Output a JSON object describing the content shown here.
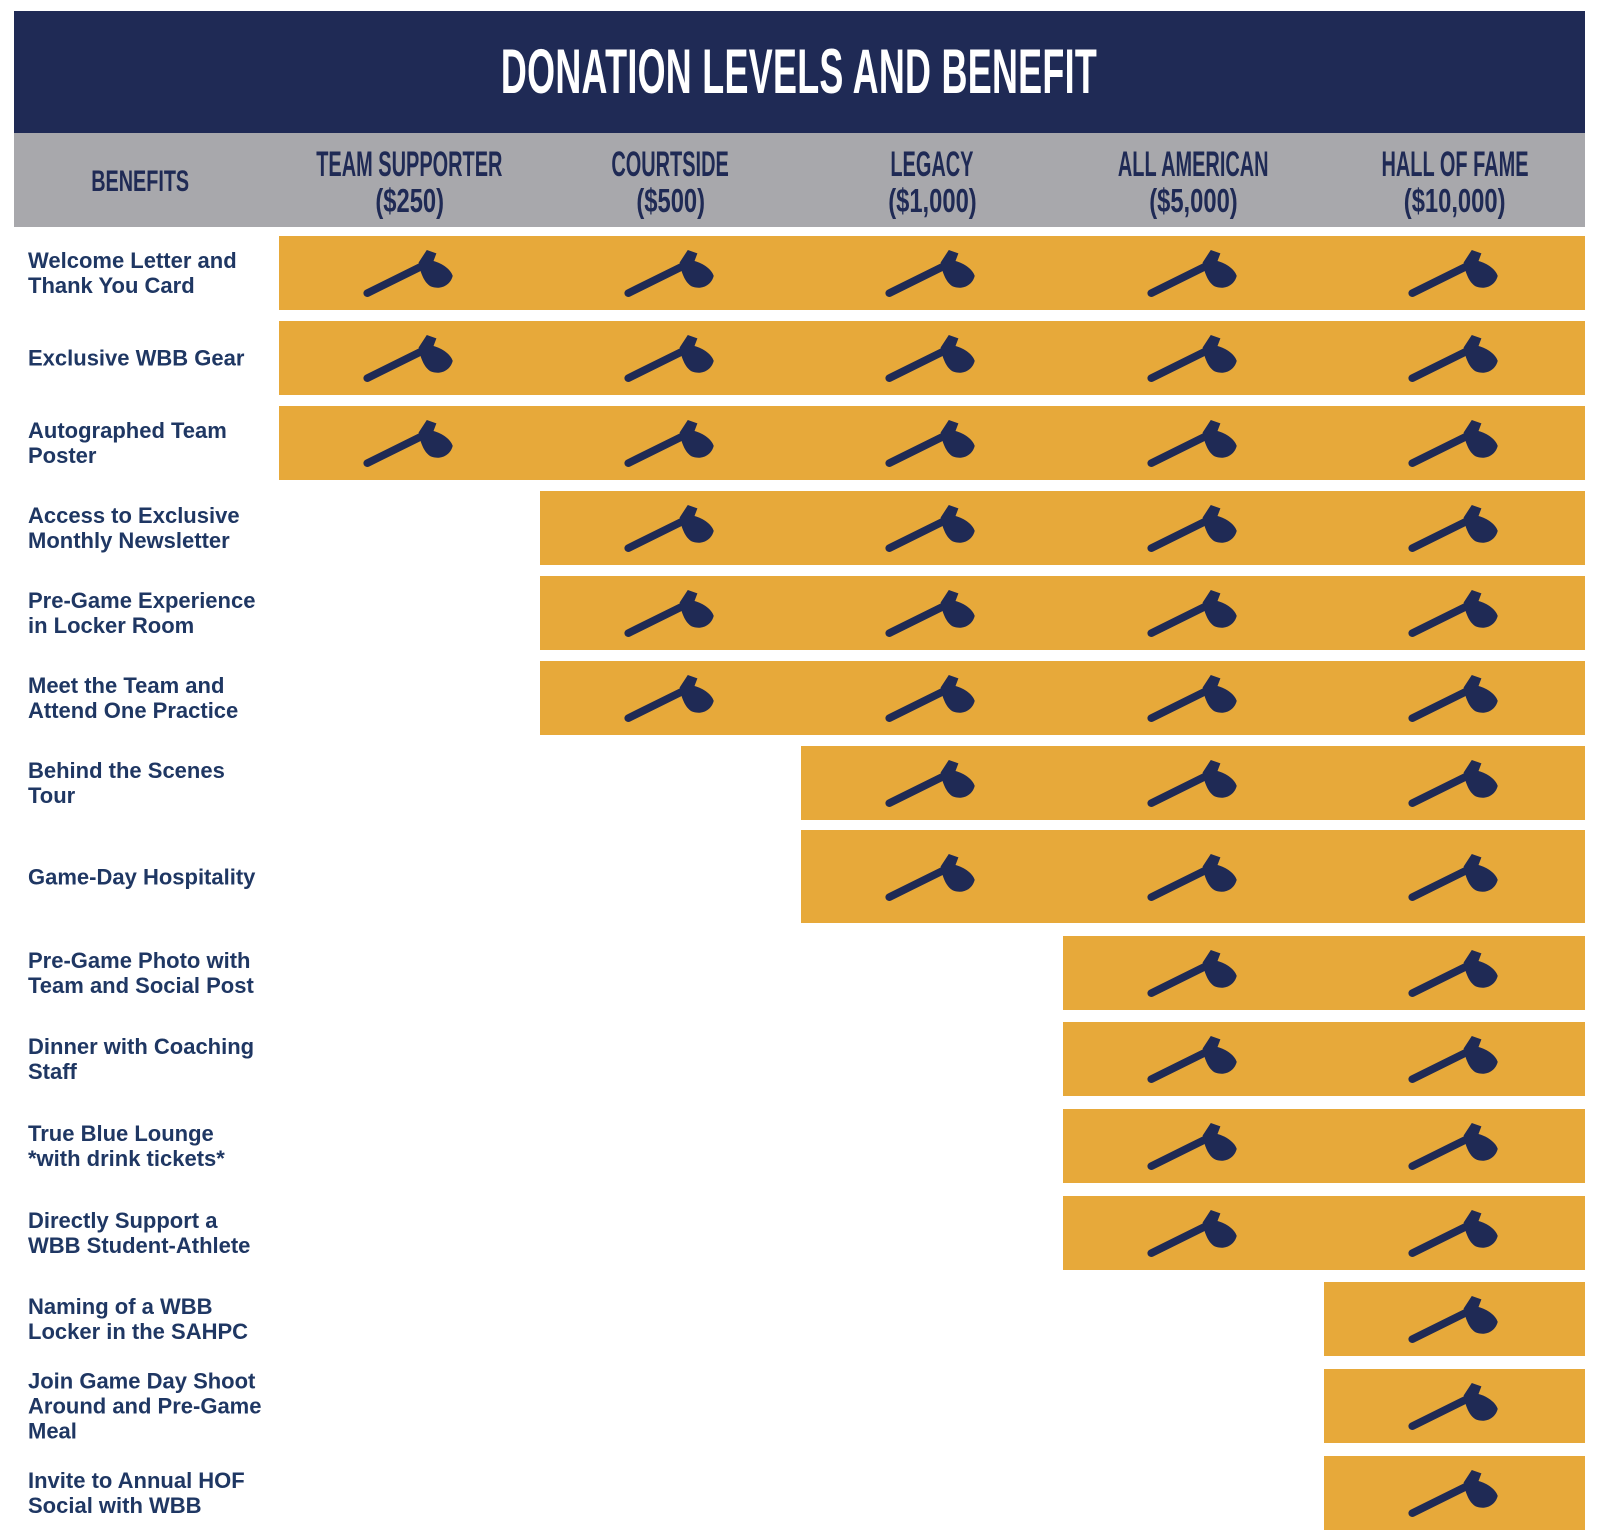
{
  "header": {
    "title": "DONATION LEVELS AND BENEFIT"
  },
  "columns": {
    "benefits_label": "BENEFITS",
    "levels": [
      {
        "name": "TEAM SUPPORTER",
        "amount": "($250)"
      },
      {
        "name": "COURTSIDE",
        "amount": "($500)"
      },
      {
        "name": "LEGACY",
        "amount": "($1,000)"
      },
      {
        "name": "ALL AMERICAN",
        "amount": "($5,000)"
      },
      {
        "name": "HALL OF FAME",
        "amount": "($10,000)"
      }
    ]
  },
  "rows": [
    {
      "lines": [
        "Welcome Letter and",
        "Thank You Card"
      ],
      "start": 0
    },
    {
      "lines": [
        "Exclusive WBB Gear"
      ],
      "start": 0
    },
    {
      "lines": [
        "Autographed Team",
        "Poster"
      ],
      "start": 0
    },
    {
      "lines": [
        "Access to Exclusive",
        "Monthly Newsletter"
      ],
      "start": 1
    },
    {
      "lines": [
        "Pre-Game Experience",
        "in Locker Room"
      ],
      "start": 1
    },
    {
      "lines": [
        "Meet the Team and",
        "Attend One Practice"
      ],
      "start": 1
    },
    {
      "lines": [
        "Behind the Scenes",
        "Tour"
      ],
      "start": 2
    },
    {
      "lines": [
        "Game-Day Hospitality"
      ],
      "start": 2
    },
    {
      "lines": [
        "Pre-Game Photo with",
        "Team and Social Post"
      ],
      "start": 3
    },
    {
      "lines": [
        "Dinner with Coaching",
        "Staff"
      ],
      "start": 3
    },
    {
      "lines": [
        "True Blue Lounge",
        "*with drink tickets*"
      ],
      "start": 3
    },
    {
      "lines": [
        "Directly Support a",
        "WBB Student-Athlete"
      ],
      "start": 3
    },
    {
      "lines": [
        "Naming of a WBB",
        "Locker in the SAHPC"
      ],
      "start": 4
    },
    {
      "lines": [
        "Join Game Day Shoot",
        "Around and Pre-Game",
        "Meal"
      ],
      "start": 4
    },
    {
      "lines": [
        "Invite to Annual HOF",
        "Social with WBB"
      ],
      "start": 4
    }
  ],
  "icon": {
    "name": "axe-icon",
    "color": "#1F2A55"
  },
  "colors": {
    "navy": "#1F2A55",
    "gold": "#E7A93A",
    "gray": "#A8A8AC",
    "label_text": "#1F3763",
    "title_text": "#FFFFFF"
  },
  "chart_data": {
    "type": "table",
    "title": "DONATION LEVELS AND BENEFIT",
    "columns": [
      "BENEFITS",
      "TEAM SUPPORTER ($250)",
      "COURTSIDE ($500)",
      "LEGACY ($1,000)",
      "ALL AMERICAN ($5,000)",
      "HALL OF FAME ($10,000)"
    ],
    "check_marker": "axe-icon",
    "rows": [
      {
        "benefit": "Welcome Letter and Thank You Card",
        "included": [
          true,
          true,
          true,
          true,
          true
        ]
      },
      {
        "benefit": "Exclusive WBB Gear",
        "included": [
          true,
          true,
          true,
          true,
          true
        ]
      },
      {
        "benefit": "Autographed Team Poster",
        "included": [
          true,
          true,
          true,
          true,
          true
        ]
      },
      {
        "benefit": "Access to Exclusive Monthly Newsletter",
        "included": [
          false,
          true,
          true,
          true,
          true
        ]
      },
      {
        "benefit": "Pre-Game Experience in Locker Room",
        "included": [
          false,
          true,
          true,
          true,
          true
        ]
      },
      {
        "benefit": "Meet the Team and Attend One Practice",
        "included": [
          false,
          true,
          true,
          true,
          true
        ]
      },
      {
        "benefit": "Behind the Scenes Tour",
        "included": [
          false,
          false,
          true,
          true,
          true
        ]
      },
      {
        "benefit": "Game-Day Hospitality",
        "included": [
          false,
          false,
          true,
          true,
          true
        ]
      },
      {
        "benefit": "Pre-Game Photo with Team and Social Post",
        "included": [
          false,
          false,
          false,
          true,
          true
        ]
      },
      {
        "benefit": "Dinner with Coaching Staff",
        "included": [
          false,
          false,
          false,
          true,
          true
        ]
      },
      {
        "benefit": "True Blue Lounge *with drink tickets*",
        "included": [
          false,
          false,
          false,
          true,
          true
        ]
      },
      {
        "benefit": "Directly Support a WBB Student-Athlete",
        "included": [
          false,
          false,
          false,
          true,
          true
        ]
      },
      {
        "benefit": "Naming of a WBB Locker in the SAHPC",
        "included": [
          false,
          false,
          false,
          false,
          true
        ]
      },
      {
        "benefit": "Join Game Day Shoot Around and Pre-Game Meal",
        "included": [
          false,
          false,
          false,
          false,
          true
        ]
      },
      {
        "benefit": "Invite to Annual HOF Social with WBB",
        "included": [
          false,
          false,
          false,
          false,
          true
        ]
      }
    ]
  }
}
